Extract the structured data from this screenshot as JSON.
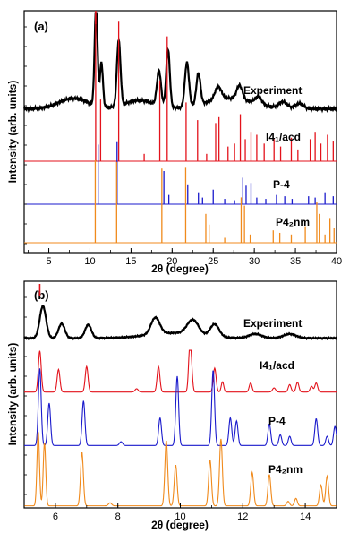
{
  "ylabel": "Intensity (arb. units)",
  "colors": {
    "experiment": "#000000",
    "I41acd": "#e3121b",
    "P-4": "#1a1acc",
    "P42nm": "#f08a1c",
    "marker": "#e3121b"
  },
  "chart_data": [
    {
      "type": "line",
      "panel_label": "(a)",
      "xlabel": "2θ (degree)",
      "xlim": [
        2,
        40
      ],
      "xticks": [
        5,
        10,
        15,
        20,
        25,
        30,
        35,
        40
      ],
      "grid": false,
      "marker_x": 10.7,
      "series": [
        {
          "name": "Experiment",
          "kind": "profile",
          "color_key": "experiment",
          "baseline": 0.76,
          "peaks": [
            [
              10.75,
              0.95,
              0.18
            ],
            [
              11.4,
              0.42,
              0.18
            ],
            [
              13.5,
              0.62,
              0.22
            ],
            [
              18.4,
              0.33,
              0.25
            ],
            [
              19.5,
              0.55,
              0.22
            ],
            [
              21.8,
              0.42,
              0.25
            ],
            [
              23.2,
              0.3,
              0.25
            ],
            [
              25.6,
              0.12,
              0.4
            ],
            [
              28.2,
              0.13,
              0.35
            ],
            [
              30.5,
              0.07,
              0.4
            ],
            [
              33.5,
              0.06,
              0.5
            ],
            [
              35.5,
              0.05,
              0.5
            ]
          ],
          "hump": [
            [
              8,
              0.1,
              2.5
            ],
            [
              16,
              0.08,
              2.5
            ],
            [
              27,
              0.1,
              4
            ]
          ]
        },
        {
          "name": "I4₁/acd",
          "kind": "sticks",
          "color_key": "I41acd",
          "baseline": 0.2,
          "peaks": [
            [
              10.7,
              1.0
            ],
            [
              11.3,
              0.42
            ],
            [
              13.5,
              0.95
            ],
            [
              16.6,
              0.05
            ],
            [
              18.5,
              0.55
            ],
            [
              19.4,
              0.85
            ],
            [
              21.7,
              0.4
            ],
            [
              23.1,
              0.28
            ],
            [
              24.2,
              0.05
            ],
            [
              25.3,
              0.26
            ],
            [
              25.7,
              0.3
            ],
            [
              26.8,
              0.1
            ],
            [
              27.6,
              0.12
            ],
            [
              28.3,
              0.32
            ],
            [
              28.9,
              0.15
            ],
            [
              29.6,
              0.2
            ],
            [
              30.3,
              0.18
            ],
            [
              31.2,
              0.12
            ],
            [
              32.4,
              0.15
            ],
            [
              33.2,
              0.1
            ],
            [
              34.5,
              0.16
            ],
            [
              35.3,
              0.08
            ],
            [
              36.8,
              0.15
            ],
            [
              37.4,
              0.2
            ],
            [
              38.1,
              0.12
            ],
            [
              38.9,
              0.18
            ],
            [
              39.6,
              0.14
            ]
          ]
        },
        {
          "name": "P-4",
          "kind": "sticks",
          "color_key": "P-4",
          "baseline": 0.2,
          "peaks": [
            [
              11.0,
              0.9
            ],
            [
              13.3,
              0.95
            ],
            [
              19.0,
              0.5
            ],
            [
              19.6,
              0.14
            ],
            [
              21.9,
              0.3
            ],
            [
              23.2,
              0.18
            ],
            [
              23.7,
              0.1
            ],
            [
              25.0,
              0.22
            ],
            [
              26.4,
              0.08
            ],
            [
              27.6,
              0.06
            ],
            [
              28.6,
              0.4
            ],
            [
              29.0,
              0.28
            ],
            [
              29.6,
              0.32
            ],
            [
              30.3,
              0.1
            ],
            [
              31.4,
              0.08
            ],
            [
              32.7,
              0.14
            ],
            [
              33.7,
              0.12
            ],
            [
              34.6,
              0.08
            ],
            [
              36.6,
              0.12
            ],
            [
              37.4,
              0.1
            ],
            [
              38.6,
              0.18
            ],
            [
              39.6,
              0.12
            ]
          ]
        },
        {
          "name": "P4₂nm",
          "kind": "sticks",
          "color_key": "P42nm",
          "baseline": 0.2,
          "peaks": [
            [
              10.65,
              1.0
            ],
            [
              13.25,
              0.98
            ],
            [
              18.75,
              0.9
            ],
            [
              21.65,
              0.92
            ],
            [
              24.1,
              0.35
            ],
            [
              24.5,
              0.22
            ],
            [
              26.4,
              0.06
            ],
            [
              28.4,
              0.55
            ],
            [
              28.8,
              0.45
            ],
            [
              29.5,
              0.1
            ],
            [
              32.3,
              0.15
            ],
            [
              33.1,
              0.12
            ],
            [
              34.5,
              0.1
            ],
            [
              36.2,
              0.2
            ],
            [
              37.6,
              0.5
            ],
            [
              37.9,
              0.35
            ],
            [
              38.6,
              0.1
            ],
            [
              39.2,
              0.3
            ],
            [
              39.7,
              0.18
            ]
          ]
        }
      ]
    },
    {
      "type": "line",
      "panel_label": "(b)",
      "xlabel": "2θ (degree)",
      "xlim": [
        5,
        15
      ],
      "xticks": [
        6,
        8,
        10,
        12,
        14
      ],
      "grid": false,
      "marker_x": 5.5,
      "series": [
        {
          "name": "Experiment",
          "kind": "profile",
          "color_key": "experiment",
          "baseline": 0.28,
          "peaks": [
            [
              5.6,
              0.62,
              0.1
            ],
            [
              6.2,
              0.28,
              0.1
            ],
            [
              7.05,
              0.26,
              0.1
            ],
            [
              9.2,
              0.32,
              0.14
            ],
            [
              10.4,
              0.28,
              0.18
            ],
            [
              11.1,
              0.24,
              0.14
            ],
            [
              12.4,
              0.08,
              0.2
            ],
            [
              13.5,
              0.08,
              0.2
            ]
          ],
          "hump": [
            [
              9.8,
              0.1,
              1.2
            ]
          ]
        },
        {
          "name": "I4₁/acd",
          "kind": "profile",
          "color_key": "I41acd",
          "baseline": 0.05,
          "peaks": [
            [
              5.5,
              1.0,
              0.045
            ],
            [
              6.1,
              0.55,
              0.045
            ],
            [
              7.0,
              0.62,
              0.045
            ],
            [
              8.6,
              0.08,
              0.05
            ],
            [
              9.3,
              0.62,
              0.045
            ],
            [
              10.3,
              0.98,
              0.04
            ],
            [
              10.35,
              0.5,
              0.04
            ],
            [
              11.1,
              0.58,
              0.045
            ],
            [
              11.35,
              0.25,
              0.04
            ],
            [
              12.25,
              0.22,
              0.045
            ],
            [
              13.0,
              0.1,
              0.05
            ],
            [
              13.5,
              0.18,
              0.045
            ],
            [
              13.75,
              0.24,
              0.045
            ],
            [
              14.2,
              0.14,
              0.045
            ],
            [
              14.35,
              0.22,
              0.045
            ]
          ]
        },
        {
          "name": "P-4",
          "kind": "profile",
          "color_key": "P-4",
          "baseline": 0.05,
          "peaks": [
            [
              5.5,
              1.0,
              0.045
            ],
            [
              5.8,
              0.55,
              0.045
            ],
            [
              6.9,
              0.58,
              0.045
            ],
            [
              8.1,
              0.05,
              0.05
            ],
            [
              9.35,
              0.36,
              0.045
            ],
            [
              9.9,
              0.9,
              0.045
            ],
            [
              11.05,
              0.98,
              0.045
            ],
            [
              11.6,
              0.36,
              0.045
            ],
            [
              11.8,
              0.32,
              0.045
            ],
            [
              12.85,
              0.28,
              0.045
            ],
            [
              13.2,
              0.14,
              0.045
            ],
            [
              13.5,
              0.12,
              0.045
            ],
            [
              14.35,
              0.35,
              0.045
            ],
            [
              14.7,
              0.12,
              0.045
            ],
            [
              14.95,
              0.25,
              0.045
            ]
          ]
        },
        {
          "name": "P4₂nm",
          "kind": "profile",
          "color_key": "P42nm",
          "baseline": 0.03,
          "peaks": [
            [
              5.45,
              1.0,
              0.04
            ],
            [
              5.65,
              0.85,
              0.04
            ],
            [
              6.85,
              0.72,
              0.045
            ],
            [
              7.75,
              0.04,
              0.05
            ],
            [
              9.55,
              0.88,
              0.045
            ],
            [
              9.85,
              0.55,
              0.045
            ],
            [
              10.95,
              0.62,
              0.045
            ],
            [
              11.3,
              0.9,
              0.045
            ],
            [
              12.3,
              0.45,
              0.045
            ],
            [
              12.85,
              0.42,
              0.045
            ],
            [
              13.45,
              0.06,
              0.045
            ],
            [
              13.7,
              0.1,
              0.045
            ],
            [
              14.5,
              0.28,
              0.045
            ],
            [
              14.7,
              0.4,
              0.045
            ]
          ]
        }
      ]
    }
  ]
}
